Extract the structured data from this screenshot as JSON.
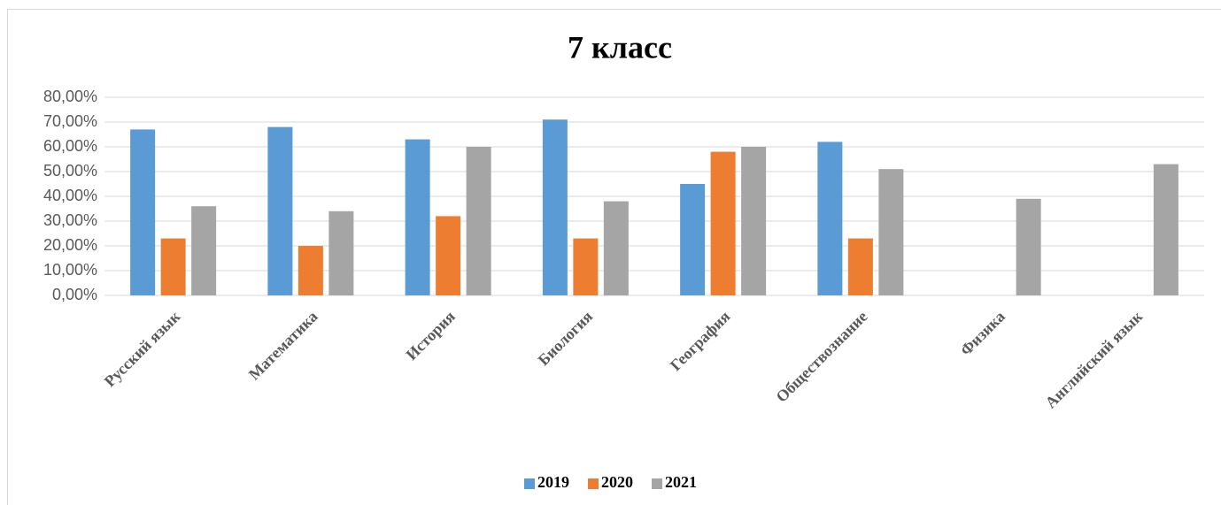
{
  "chart_data": {
    "type": "bar",
    "title": "7 класс",
    "categories": [
      "Русский язык",
      "Математика",
      "История",
      "Биология",
      "География",
      "Обществознание",
      "Физика",
      "Английский язык"
    ],
    "series": [
      {
        "name": "2019",
        "color": "#5b9bd5",
        "values": [
          67,
          68,
          63,
          71,
          45,
          62,
          null,
          null
        ]
      },
      {
        "name": "2020",
        "color": "#ed7d31",
        "values": [
          23,
          20,
          32,
          23,
          58,
          23,
          null,
          null
        ]
      },
      {
        "name": "2021",
        "color": "#a5a5a5",
        "values": [
          36,
          34,
          60,
          38,
          60,
          51,
          39,
          53
        ]
      }
    ],
    "ylim": [
      0,
      80
    ],
    "yticks": [
      {
        "value": 0,
        "label": "0,00%"
      },
      {
        "value": 10,
        "label": "10,00%"
      },
      {
        "value": 20,
        "label": "20,00%"
      },
      {
        "value": 30,
        "label": "30,00%"
      },
      {
        "value": 40,
        "label": "40,00%"
      },
      {
        "value": 50,
        "label": "50,00%"
      },
      {
        "value": 60,
        "label": "60,00%"
      },
      {
        "value": 70,
        "label": "70,00%"
      },
      {
        "value": 80,
        "label": "80,00%"
      }
    ],
    "grid": true,
    "legend": "bottom"
  }
}
